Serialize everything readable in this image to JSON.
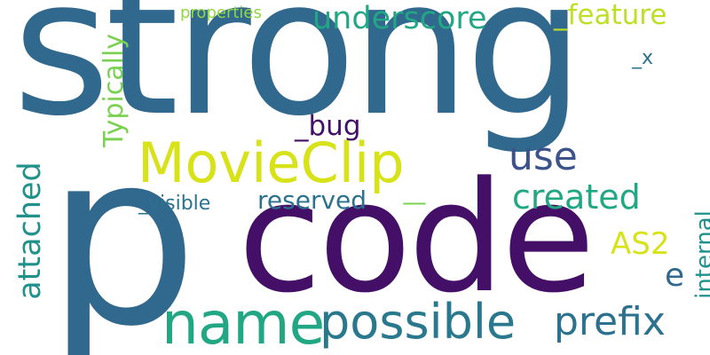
{
  "words": [
    {
      "text": "strong",
      "color": "#31688e"
    },
    {
      "text": "p",
      "color": "#31688e"
    },
    {
      "text": "code",
      "color": "#440f66"
    },
    {
      "text": "MovieClip",
      "color": "#d8e219"
    },
    {
      "text": "name",
      "color": "#22a785"
    },
    {
      "text": "possible",
      "color": "#2a788e"
    },
    {
      "text": "underscore",
      "color": "#22a785"
    },
    {
      "text": "_feature",
      "color": "#bddf26"
    },
    {
      "text": "properties",
      "color": "#90d743"
    },
    {
      "text": "_x",
      "color": "#2c728e"
    },
    {
      "text": "_bug",
      "color": "#440f66"
    },
    {
      "text": "use",
      "color": "#3b528b"
    },
    {
      "text": "created",
      "color": "#22a785"
    },
    {
      "text": "reserved",
      "color": "#2c728e"
    },
    {
      "text": "_visible",
      "color": "#2c728e"
    },
    {
      "text": "AS2",
      "color": "#d8e219"
    },
    {
      "text": "e",
      "color": "#31688e"
    },
    {
      "text": "prefix",
      "color": "#2c728e"
    },
    {
      "text": "Typically",
      "color": "#7ad151"
    },
    {
      "text": "attached",
      "color": "#21918c"
    },
    {
      "text": "internal",
      "color": "#21918c"
    },
    {
      "text": "—",
      "color": "#7ad151"
    }
  ]
}
